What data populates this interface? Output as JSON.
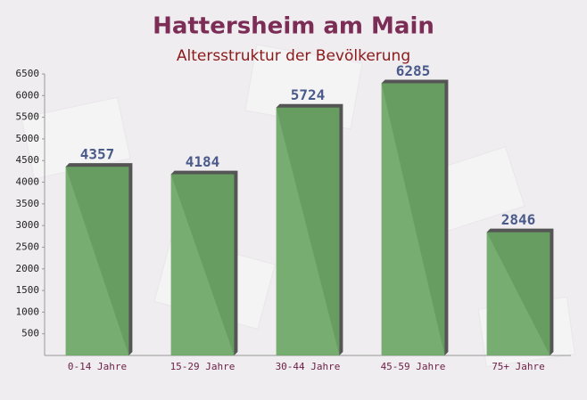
{
  "chart_data": {
    "type": "bar",
    "title": "Hattersheim am Main",
    "subtitle": "Altersstruktur der Bevölkerung",
    "categories": [
      "0-14 Jahre",
      "15-29 Jahre",
      "30-44 Jahre",
      "45-59 Jahre",
      "75+ Jahre"
    ],
    "values": [
      4357,
      4184,
      5724,
      6285,
      2846
    ],
    "color": "#6aa564",
    "ylim": [
      0,
      6500
    ],
    "yticks": [
      500,
      1000,
      1500,
      2000,
      2500,
      3000,
      3500,
      4000,
      4500,
      5000,
      5500,
      6000,
      6500
    ],
    "grid": false
  }
}
